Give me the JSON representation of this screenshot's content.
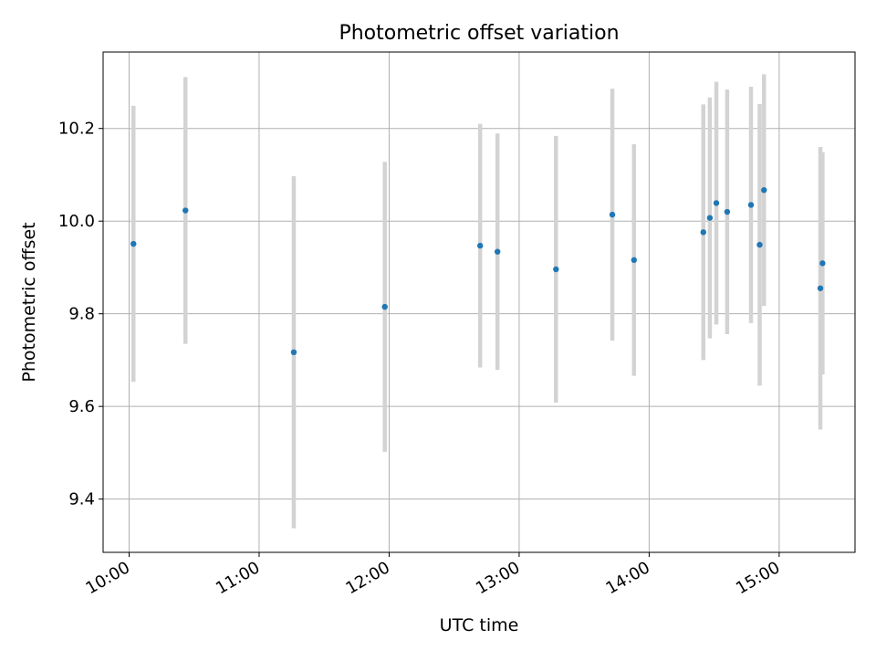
{
  "chart_data": {
    "type": "scatter",
    "title": "Photometric offset variation",
    "xlabel": "UTC time",
    "ylabel": "Photometric offset",
    "x_ticks": [
      "10:00",
      "11:00",
      "12:00",
      "13:00",
      "14:00",
      "15:00"
    ],
    "y_ticks": [
      "9.4",
      "9.6",
      "9.8",
      "10.0",
      "10.2"
    ],
    "xlim": [
      "09:48",
      "15:35"
    ],
    "ylim": [
      9.285,
      10.365
    ],
    "grid": true,
    "points": [
      {
        "x": "10:02",
        "y": 9.951,
        "yerr": 0.298
      },
      {
        "x": "10:26",
        "y": 10.023,
        "yerr": 0.288
      },
      {
        "x": "11:16",
        "y": 9.717,
        "yerr": 0.38
      },
      {
        "x": "11:58",
        "y": 9.815,
        "yerr": 0.313
      },
      {
        "x": "12:42",
        "y": 9.947,
        "yerr": 0.263
      },
      {
        "x": "12:50",
        "y": 9.934,
        "yerr": 0.255
      },
      {
        "x": "13:17",
        "y": 9.896,
        "yerr": 0.288
      },
      {
        "x": "13:43",
        "y": 10.014,
        "yerr": 0.272
      },
      {
        "x": "13:53",
        "y": 9.916,
        "yerr": 0.25
      },
      {
        "x": "14:25",
        "y": 9.976,
        "yerr": 0.276
      },
      {
        "x": "14:28",
        "y": 10.007,
        "yerr": 0.26
      },
      {
        "x": "14:31",
        "y": 10.039,
        "yerr": 0.262
      },
      {
        "x": "14:36",
        "y": 10.02,
        "yerr": 0.264
      },
      {
        "x": "14:47",
        "y": 10.035,
        "yerr": 0.255
      },
      {
        "x": "14:51",
        "y": 9.949,
        "yerr": 0.304
      },
      {
        "x": "14:53",
        "y": 10.067,
        "yerr": 0.25
      },
      {
        "x": "15:19",
        "y": 9.855,
        "yerr": 0.305
      },
      {
        "x": "15:20",
        "y": 9.909,
        "yerr": 0.24
      }
    ],
    "colors": {
      "point": "#1f77b4",
      "errorbar": "#d3d3d3",
      "grid": "#b0b0b0"
    }
  }
}
